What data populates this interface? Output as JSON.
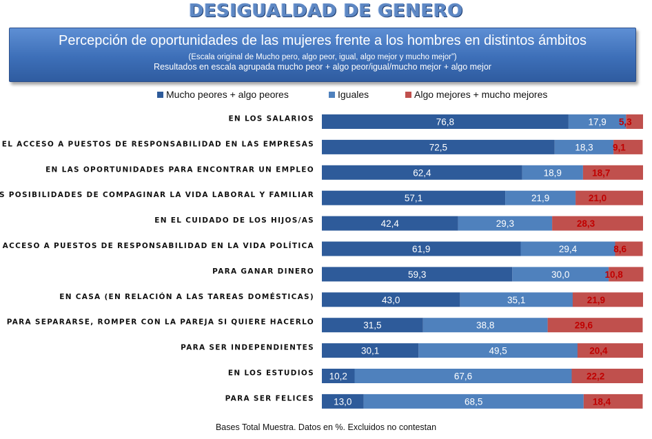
{
  "header": {
    "main_title": "DESIGUALDAD DE GENERO",
    "banner_title": "Percepción de oportunidades de las mujeres frente a los hombres en distintos ámbitos",
    "banner_note": "(Escala original de Mucho pero, algo peor, igual, algo mejor y mucho mejor”)",
    "banner_note2": "Resultados en escala agrupada mucho peor + algo peor/igual/mucho mejor + algo mejor"
  },
  "footnote": "Bases Total Muestra. Datos en %. Excluidos no contestan",
  "chart_data": {
    "type": "bar",
    "orientation": "horizontal",
    "stacked": true,
    "xlim": [
      0,
      100
    ],
    "legend_position": "top",
    "grid": false,
    "categories": [
      "EN LOS SALARIOS",
      "EN EL ACCESO A PUESTOS DE RESPONSABILIDAD EN LAS EMPRESAS",
      "EN LAS OPORTUNIDADES PARA ENCONTRAR UN EMPLEO",
      "EN LAS POSIBILIDADES DE COMPAGINAR LA VIDA LABORAL Y FAMILIAR",
      "EN EL CUIDADO DE LOS HIJOS/AS",
      "EN EL ACCESO A PUESTOS DE RESPONSABILIDAD EN LA VIDA POLÍTICA",
      "PARA GANAR DINERO",
      "EN CASA (EN RELACIÓN A LAS TAREAS DOMÉSTICAS)",
      "PARA SEPARARSE, ROMPER CON LA PAREJA SI QUIERE HACERLO",
      "PARA SER INDEPENDIENTES",
      "EN LOS ESTUDIOS",
      "PARA SER FELICES"
    ],
    "series": [
      {
        "name": "Mucho peores + algo peores",
        "color": "#2e5b9a",
        "values": [
          "76,8",
          "72,5",
          "62,4",
          "57,1",
          "42,4",
          "61,9",
          "59,3",
          "43,0",
          "31,5",
          "30,1",
          "10,2",
          "13,0"
        ]
      },
      {
        "name": "Iguales",
        "color": "#4f81bd",
        "values": [
          "17,9",
          "18,3",
          "18,9",
          "21,9",
          "29,3",
          "29,4",
          "30,0",
          "35,1",
          "38,8",
          "49,5",
          "67,6",
          "68,5"
        ]
      },
      {
        "name": "Algo mejores + mucho mejores",
        "color": "#c0504d",
        "values": [
          "5,3",
          "9,1",
          "18,7",
          "21,0",
          "28,3",
          "8,6",
          "10,8",
          "21,9",
          "29,6",
          "20,4",
          "22,2",
          "18,4"
        ]
      }
    ]
  }
}
